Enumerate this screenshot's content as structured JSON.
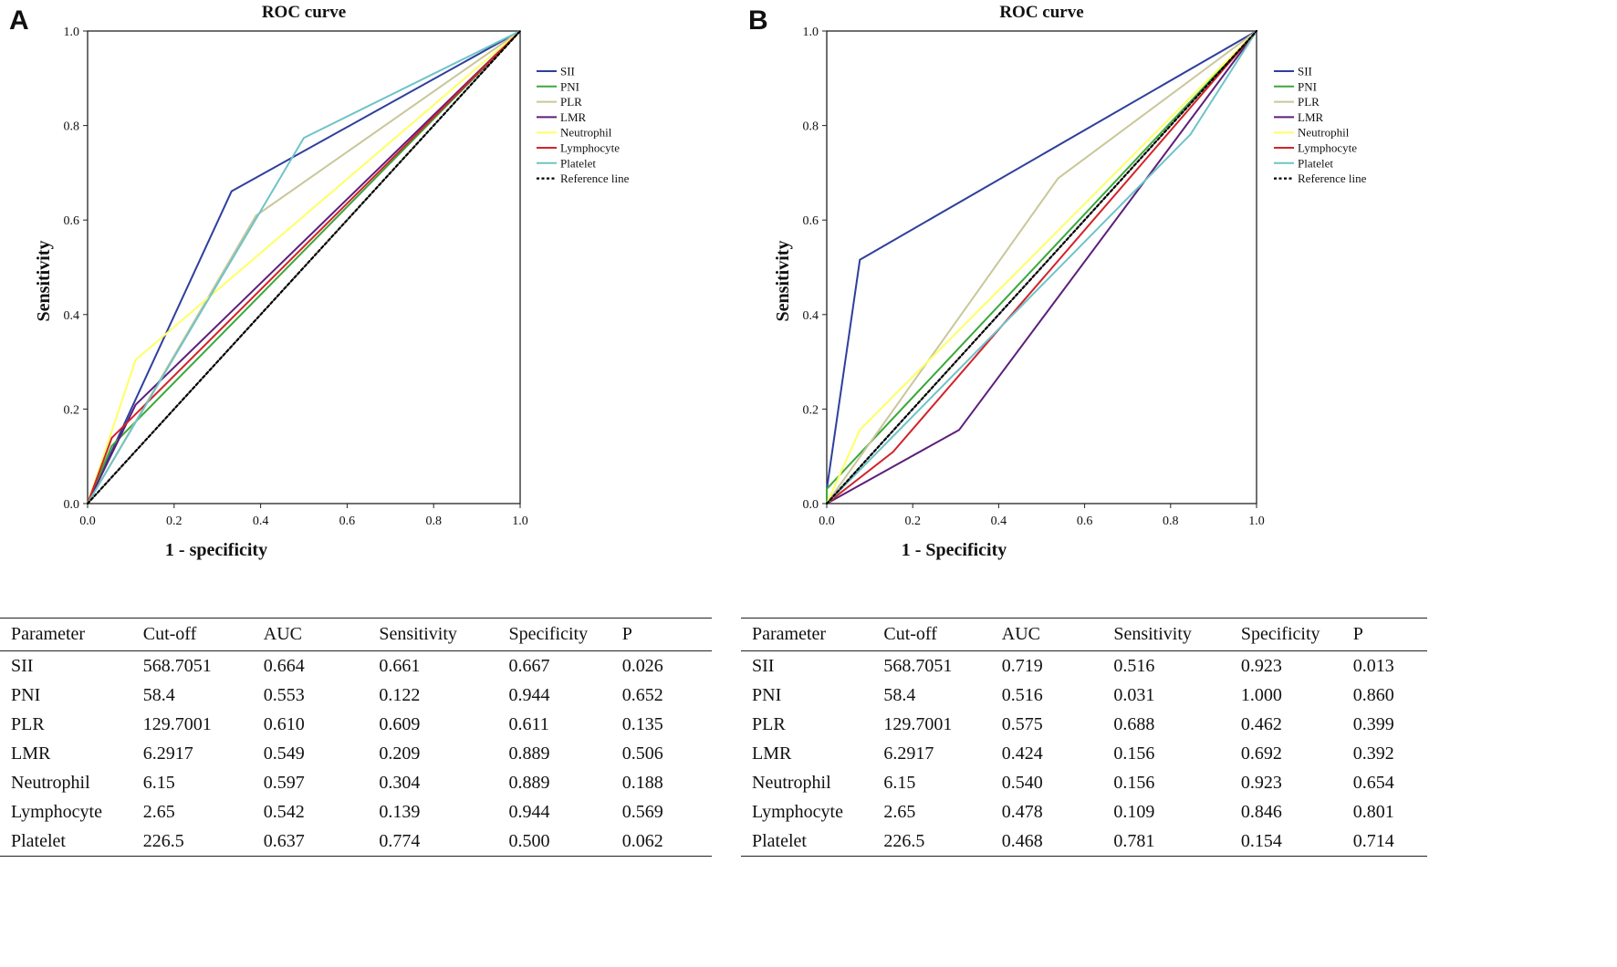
{
  "chart_data": [
    {
      "type": "line",
      "panel_letter": "A",
      "title": "ROC curve",
      "xlabel": "1 - specificity",
      "ylabel": "Sensitivity",
      "xlim": [
        0,
        1
      ],
      "ylim": [
        0,
        1
      ],
      "xticks": [
        "0.0",
        "0.2",
        "0.4",
        "0.6",
        "0.8",
        "1.0"
      ],
      "yticks": [
        "0.0",
        "0.2",
        "0.4",
        "0.6",
        "0.8",
        "1.0"
      ],
      "legend_position": "right",
      "series": [
        {
          "name": "SII",
          "color": "#2e3f9c",
          "x": [
            0,
            0.333,
            1
          ],
          "y": [
            0,
            0.661,
            1
          ]
        },
        {
          "name": "PNI",
          "color": "#3aa83a",
          "x": [
            0,
            0.056,
            1
          ],
          "y": [
            0,
            0.122,
            1
          ]
        },
        {
          "name": "PLR",
          "color": "#c9c79a",
          "x": [
            0,
            0.389,
            1
          ],
          "y": [
            0,
            0.609,
            1
          ]
        },
        {
          "name": "LMR",
          "color": "#5c1f7a",
          "x": [
            0,
            0.111,
            1
          ],
          "y": [
            0,
            0.209,
            1
          ]
        },
        {
          "name": "Neutrophil",
          "color": "#ffff66",
          "x": [
            0,
            0.111,
            1
          ],
          "y": [
            0,
            0.304,
            1
          ]
        },
        {
          "name": "Lymphocyte",
          "color": "#d2232a",
          "x": [
            0,
            0.056,
            1
          ],
          "y": [
            0,
            0.139,
            1
          ]
        },
        {
          "name": "Platelet",
          "color": "#6fc3c8",
          "x": [
            0,
            0.5,
            1
          ],
          "y": [
            0,
            0.774,
            1
          ]
        },
        {
          "name": "Reference line",
          "color": "#000000",
          "dashed": true,
          "x": [
            0,
            1
          ],
          "y": [
            0,
            1
          ]
        }
      ]
    },
    {
      "type": "line",
      "panel_letter": "B",
      "title": "ROC curve",
      "xlabel": "1 - Specificity",
      "ylabel": "Sensitivity",
      "xlim": [
        0,
        1
      ],
      "ylim": [
        0,
        1
      ],
      "xticks": [
        "0.0",
        "0.2",
        "0.4",
        "0.6",
        "0.8",
        "1.0"
      ],
      "yticks": [
        "0.0",
        "0.2",
        "0.4",
        "0.6",
        "0.8",
        "1.0"
      ],
      "legend_position": "right",
      "series": [
        {
          "name": "SII",
          "color": "#2e3f9c",
          "x": [
            0,
            0,
            0.077,
            1
          ],
          "y": [
            0,
            0.03,
            0.516,
            1
          ]
        },
        {
          "name": "PNI",
          "color": "#3aa83a",
          "x": [
            0,
            0,
            1
          ],
          "y": [
            0,
            0.031,
            1
          ]
        },
        {
          "name": "PLR",
          "color": "#c9c79a",
          "x": [
            0,
            0.538,
            1
          ],
          "y": [
            0,
            0.688,
            1
          ]
        },
        {
          "name": "LMR",
          "color": "#5c1f7a",
          "x": [
            0,
            0.308,
            1
          ],
          "y": [
            0,
            0.156,
            1
          ]
        },
        {
          "name": "Neutrophil",
          "color": "#ffff66",
          "x": [
            0,
            0.077,
            1
          ],
          "y": [
            0,
            0.156,
            1
          ]
        },
        {
          "name": "Lymphocyte",
          "color": "#d2232a",
          "x": [
            0,
            0.154,
            1
          ],
          "y": [
            0,
            0.109,
            1
          ]
        },
        {
          "name": "Platelet",
          "color": "#6fc3c8",
          "x": [
            0,
            0.846,
            1
          ],
          "y": [
            0,
            0.781,
            1
          ]
        },
        {
          "name": "Reference line",
          "color": "#000000",
          "dashed": true,
          "x": [
            0,
            1
          ],
          "y": [
            0,
            1
          ]
        }
      ]
    }
  ],
  "tables": [
    {
      "headers": [
        "Parameter",
        "Cut-off",
        "AUC",
        "Sensitivity",
        "Specificity",
        "P"
      ],
      "rows": [
        [
          "SII",
          "568.7051",
          "0.664",
          "0.661",
          "0.667",
          "0.026"
        ],
        [
          "PNI",
          "58.4",
          "0.553",
          "0.122",
          "0.944",
          "0.652"
        ],
        [
          "PLR",
          "129.7001",
          "0.610",
          "0.609",
          "0.611",
          "0.135"
        ],
        [
          "LMR",
          "6.2917",
          "0.549",
          "0.209",
          "0.889",
          "0.506"
        ],
        [
          "Neutrophil",
          "6.15",
          "0.597",
          "0.304",
          "0.889",
          "0.188"
        ],
        [
          "Lymphocyte",
          "2.65",
          "0.542",
          "0.139",
          "0.944",
          "0.569"
        ],
        [
          "Platelet",
          "226.5",
          "0.637",
          "0.774",
          "0.500",
          "0.062"
        ]
      ]
    },
    {
      "headers": [
        "Parameter",
        "Cut-off",
        "AUC",
        "Sensitivity",
        "Specificity",
        "P"
      ],
      "rows": [
        [
          "SII",
          "568.7051",
          "0.719",
          "0.516",
          "0.923",
          "0.013"
        ],
        [
          "PNI",
          "58.4",
          "0.516",
          "0.031",
          "1.000",
          "0.860"
        ],
        [
          "PLR",
          "129.7001",
          "0.575",
          "0.688",
          "0.462",
          "0.399"
        ],
        [
          "LMR",
          "6.2917",
          "0.424",
          "0.156",
          "0.692",
          "0.392"
        ],
        [
          "Neutrophil",
          "6.15",
          "0.540",
          "0.156",
          "0.923",
          "0.654"
        ],
        [
          "Lymphocyte",
          "2.65",
          "0.478",
          "0.109",
          "0.846",
          "0.801"
        ],
        [
          "Platelet",
          "226.5",
          "0.468",
          "0.781",
          "0.154",
          "0.714"
        ]
      ]
    }
  ]
}
